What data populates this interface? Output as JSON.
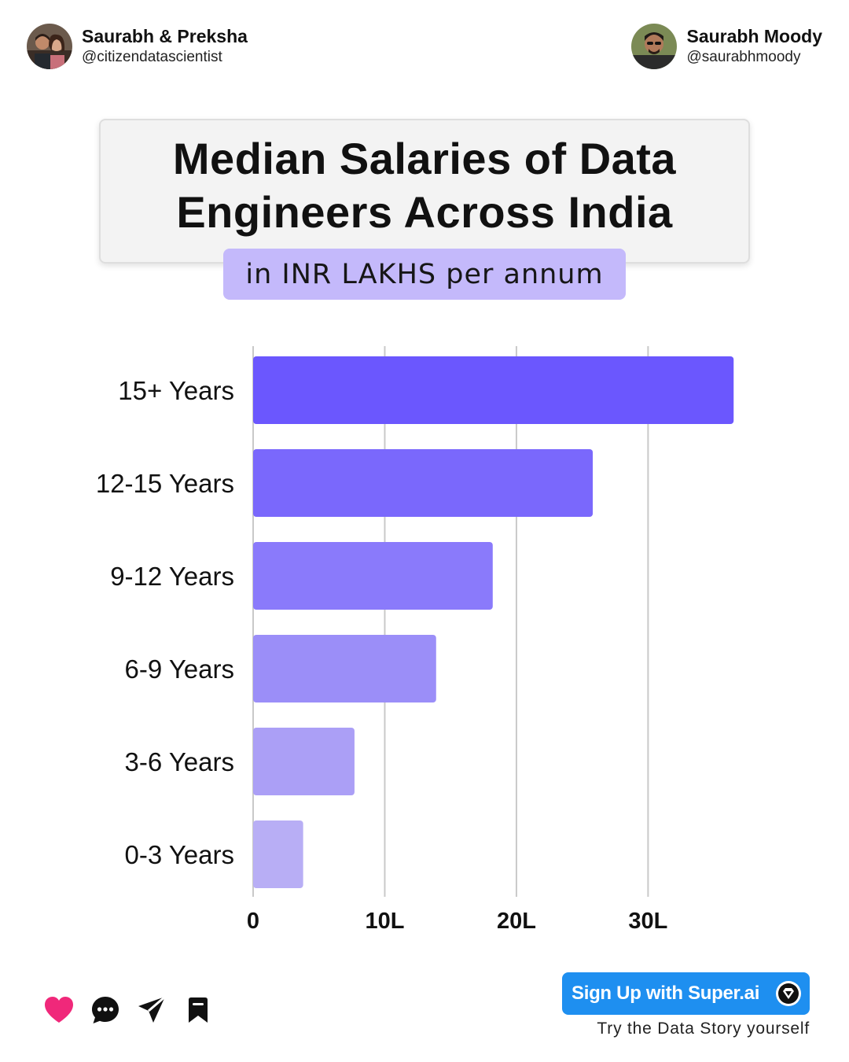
{
  "header": {
    "left_author": {
      "name": "Saurabh & Preksha",
      "handle": "@citizendatascientist"
    },
    "right_author": {
      "name": "Saurabh Moody",
      "handle": "@saurabhmoody"
    }
  },
  "title_card": {
    "title": "Median Salaries of Data Engineers Across India",
    "subtitle": "in INR LAKHS per annum"
  },
  "chart_data": {
    "type": "bar",
    "orientation": "horizontal",
    "title": "Median Salaries of Data Engineers Across India",
    "subtitle": "in INR LAKHS per annum",
    "categories": [
      "15+ Years",
      "12-15 Years",
      "9-12 Years",
      "6-9 Years",
      "3-6 Years",
      "0-3 Years"
    ],
    "values": [
      36.5,
      25.8,
      18.2,
      13.9,
      7.7,
      3.8
    ],
    "bar_colors": [
      "#6b57fe",
      "#7a68fc",
      "#8a7afb",
      "#9b8ef8",
      "#ab9ff6",
      "#b8aef5"
    ],
    "x_ticks": [
      0,
      10,
      20,
      30
    ],
    "x_tick_labels": [
      "0",
      "10L",
      "20L",
      "30L"
    ],
    "xlim": [
      0,
      37.5
    ],
    "grid": "vertical",
    "legend": "none"
  },
  "footer": {
    "actions": [
      {
        "icon": "heart-icon",
        "color": "#f0287a"
      },
      {
        "icon": "comment-icon",
        "color": "#111111"
      },
      {
        "icon": "send-icon",
        "color": "#111111"
      },
      {
        "icon": "bookmark-icon",
        "color": "#111111"
      }
    ],
    "cta_label": "Sign Up with Super.ai",
    "cta_caption": "Try the Data Story yourself",
    "cta_color": "#1e8ff0"
  }
}
